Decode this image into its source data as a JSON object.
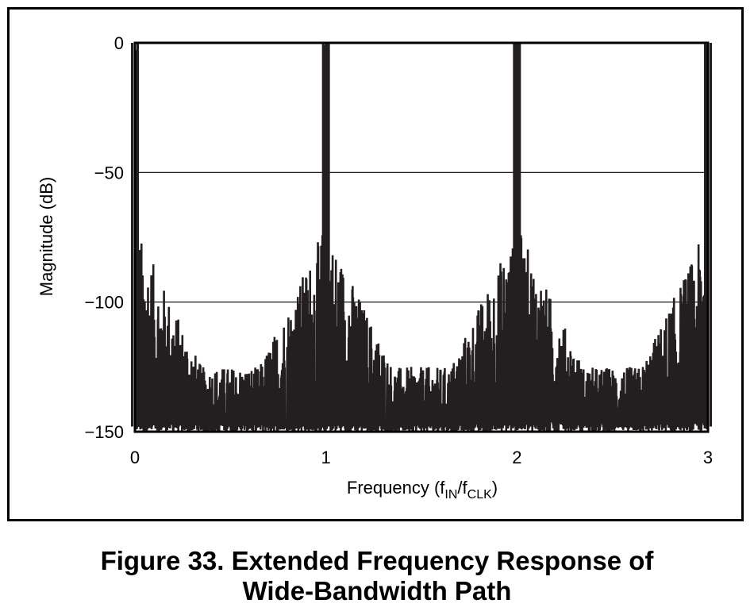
{
  "chart_data": {
    "type": "line",
    "title": "",
    "xlabel_parts": {
      "base": "Frequency (f",
      "sub1": "IN",
      "mid": "/f",
      "sub2": "CLK",
      "end": ")"
    },
    "ylabel": "Magnitude (dB)",
    "xlim": [
      0,
      3
    ],
    "ylim": [
      -150,
      0
    ],
    "x_ticks": [
      {
        "value": 0,
        "label": "0"
      },
      {
        "value": 1,
        "label": "1"
      },
      {
        "value": 2,
        "label": "2"
      },
      {
        "value": 3,
        "label": "3"
      }
    ],
    "y_ticks": [
      {
        "value": 0,
        "label": "0"
      },
      {
        "value": -50,
        "label": "−50"
      },
      {
        "value": -100,
        "label": "−100"
      },
      {
        "value": -150,
        "label": "−150"
      }
    ],
    "gridlines_y": [
      -50,
      -100
    ],
    "grid": "horizontal only",
    "line_color": "#231f20",
    "main_peaks": [
      {
        "x": 0,
        "y": 0
      },
      {
        "x": 1,
        "y": 0
      },
      {
        "x": 2,
        "y": 0
      },
      {
        "x": 3,
        "y": 0
      }
    ],
    "sidelobe_peaks_db": [
      -75,
      -90,
      -110,
      -120,
      -125,
      -135,
      -140,
      -145
    ],
    "noise_floor_db": [
      -150,
      -110
    ]
  },
  "caption": {
    "line1": "Figure 33.  Extended Frequency Response of",
    "line2": "Wide-Bandwidth Path"
  }
}
